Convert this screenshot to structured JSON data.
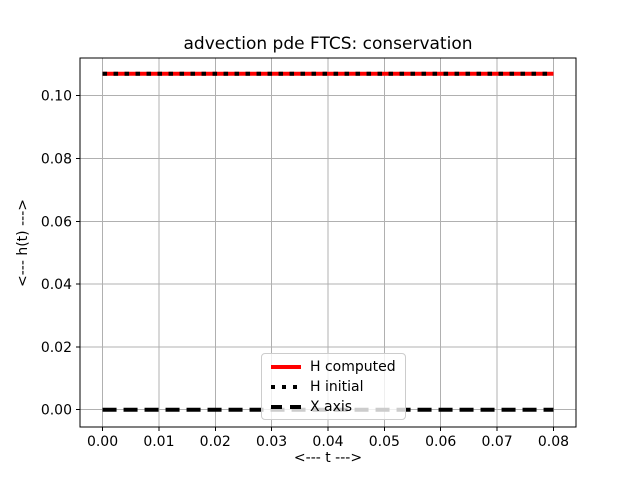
{
  "figure": {
    "background": "#ffffff",
    "axes_edge_color": "#000000",
    "text_color": "#000000"
  },
  "chart_data": {
    "type": "line",
    "title": "advection pde FTCS: conservation",
    "xlabel": "<--- t --->",
    "ylabel": "<--- h(t) --->",
    "xlim": [
      -0.004,
      0.084
    ],
    "ylim": [
      -0.0055,
      0.112
    ],
    "xticks": [
      0.0,
      0.01,
      0.02,
      0.03,
      0.04,
      0.05,
      0.06,
      0.07,
      0.08
    ],
    "xtick_labels": [
      "0.00",
      "0.01",
      "0.02",
      "0.03",
      "0.04",
      "0.05",
      "0.06",
      "0.07",
      "0.08"
    ],
    "yticks": [
      0.0,
      0.02,
      0.04,
      0.06,
      0.08,
      0.1
    ],
    "ytick_labels": [
      "0.00",
      "0.02",
      "0.04",
      "0.06",
      "0.08",
      "0.10"
    ],
    "grid": true,
    "grid_color": "#b0b0b0",
    "legend": {
      "position": "lower center",
      "border_color": "#cccccc",
      "background": "rgba(255,255,255,0.8)"
    },
    "series": [
      {
        "name": "H computed",
        "color": "#ff0000",
        "style": "solid",
        "width": 4,
        "x": [
          0.0,
          0.08
        ],
        "y": [
          0.107,
          0.107
        ]
      },
      {
        "name": "H initial",
        "color": "#000000",
        "style": "dotted",
        "width": 4,
        "x": [
          0.0,
          0.08
        ],
        "y": [
          0.107,
          0.107
        ]
      },
      {
        "name": "X axis",
        "color": "#000000",
        "style": "dashed",
        "width": 4,
        "x": [
          0.0,
          0.08
        ],
        "y": [
          0.0,
          0.0
        ]
      }
    ]
  }
}
